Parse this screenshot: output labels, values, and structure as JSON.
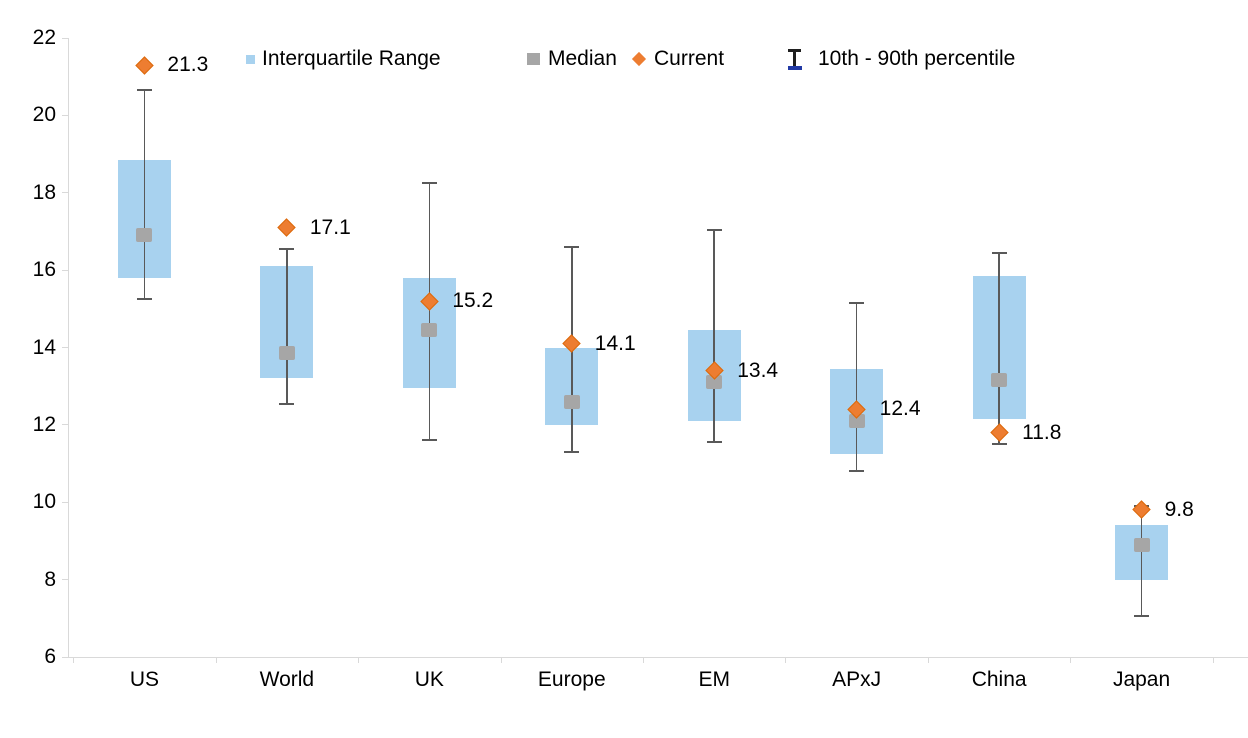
{
  "colors": {
    "iqr_box": "#A8D2EF",
    "median": "#A6A6A6",
    "current": "#ED7D31",
    "current_border": "#DC6A0C",
    "whisker": "#595959",
    "axis": "#D9D9D9",
    "legend_ibeam_dark": "#1f1f1f",
    "legend_ibeam_blue": "#2139A5",
    "text": "#000000"
  },
  "chart_data": {
    "type": "box",
    "title": "",
    "xlabel": "",
    "ylabel": "",
    "ylim": [
      6,
      22
    ],
    "yticks": [
      22,
      20,
      18,
      16,
      14,
      12,
      10,
      8,
      6
    ],
    "grid": false,
    "legend": {
      "position": "top",
      "items": [
        {
          "label": "Interquartile Range",
          "marker": "iqr-square"
        },
        {
          "label": "Median",
          "marker": "median-square"
        },
        {
          "label": "Current",
          "marker": "current-diamond"
        },
        {
          "label": "10th - 90th percentile",
          "marker": "percentile-ibeam"
        }
      ]
    },
    "categories": [
      "US",
      "World",
      "UK",
      "Europe",
      "EM",
      "APxJ",
      "China",
      "Japan"
    ],
    "series": [
      {
        "category": "US",
        "p10": 15.25,
        "q1": 15.8,
        "median": 16.9,
        "q3": 18.85,
        "p90": 20.65,
        "current": 21.3,
        "current_label": "21.3"
      },
      {
        "category": "World",
        "p10": 12.55,
        "q1": 13.2,
        "median": 13.85,
        "q3": 16.1,
        "p90": 16.55,
        "current": 17.1,
        "current_label": "17.1"
      },
      {
        "category": "UK",
        "p10": 11.6,
        "q1": 12.95,
        "median": 14.45,
        "q3": 15.8,
        "p90": 18.25,
        "current": 15.2,
        "current_label": "15.2"
      },
      {
        "category": "Europe",
        "p10": 11.3,
        "q1": 12.0,
        "median": 12.6,
        "q3": 14.0,
        "p90": 16.6,
        "current": 14.1,
        "current_label": "14.1"
      },
      {
        "category": "EM",
        "p10": 11.55,
        "q1": 12.1,
        "median": 13.1,
        "q3": 14.45,
        "p90": 17.05,
        "current": 13.4,
        "current_label": "13.4"
      },
      {
        "category": "APxJ",
        "p10": 10.8,
        "q1": 11.25,
        "median": 12.1,
        "q3": 13.45,
        "p90": 15.15,
        "current": 12.4,
        "current_label": "12.4"
      },
      {
        "category": "China",
        "p10": 11.5,
        "q1": 12.15,
        "median": 13.15,
        "q3": 15.85,
        "p90": 16.45,
        "current": 11.8,
        "current_label": "11.8"
      },
      {
        "category": "Japan",
        "p10": 7.05,
        "q1": 8.0,
        "median": 8.9,
        "q3": 9.4,
        "p90": 9.9,
        "current": 9.8,
        "current_label": "9.8"
      }
    ]
  }
}
